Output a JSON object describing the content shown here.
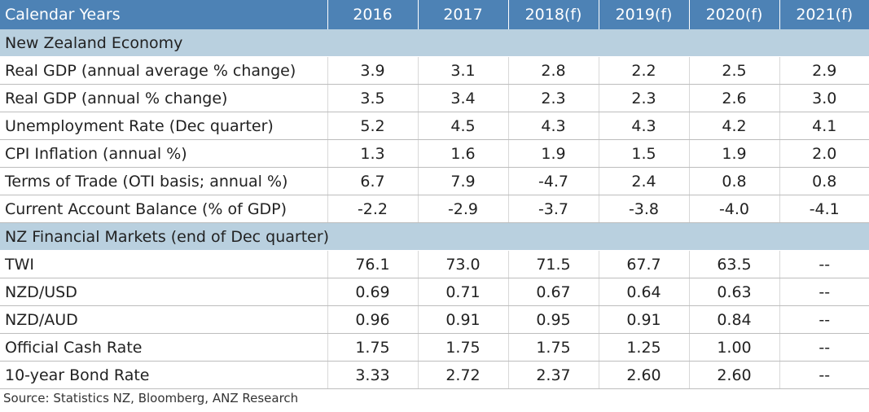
{
  "chart_data": {
    "type": "table",
    "columns": [
      "Calendar Years",
      "2016",
      "2017",
      "2018(f)",
      "2019(f)",
      "2020(f)",
      "2021(f)"
    ],
    "sections": [
      {
        "title": "New Zealand Economy",
        "rows": [
          {
            "label": "Real GDP (annual average % change)",
            "values": [
              "3.9",
              "3.1",
              "2.8",
              "2.2",
              "2.5",
              "2.9"
            ]
          },
          {
            "label": "Real GDP (annual % change)",
            "values": [
              "3.5",
              "3.4",
              "2.3",
              "2.3",
              "2.6",
              "3.0"
            ]
          },
          {
            "label": "Unemployment Rate (Dec quarter)",
            "values": [
              "5.2",
              "4.5",
              "4.3",
              "4.3",
              "4.2",
              "4.1"
            ]
          },
          {
            "label": "CPI Inflation (annual %)",
            "values": [
              "1.3",
              "1.6",
              "1.9",
              "1.5",
              "1.9",
              "2.0"
            ]
          },
          {
            "label": "Terms of Trade (OTI basis; annual %)",
            "values": [
              "6.7",
              "7.9",
              "-4.7",
              "2.4",
              "0.8",
              "0.8"
            ]
          },
          {
            "label": "Current Account Balance (% of GDP)",
            "values": [
              "-2.2",
              "-2.9",
              "-3.7",
              "-3.8",
              "-4.0",
              "-4.1"
            ]
          }
        ]
      },
      {
        "title": "NZ Financial Markets (end of Dec quarter)",
        "rows": [
          {
            "label": "TWI",
            "values": [
              "76.1",
              "73.0",
              "71.5",
              "67.7",
              "63.5",
              "--"
            ]
          },
          {
            "label": "NZD/USD",
            "values": [
              "0.69",
              "0.71",
              "0.67",
              "0.64",
              "0.63",
              "--"
            ]
          },
          {
            "label": "NZD/AUD",
            "values": [
              "0.96",
              "0.91",
              "0.95",
              "0.91",
              "0.84",
              "--"
            ]
          },
          {
            "label": "Official Cash Rate",
            "values": [
              "1.75",
              "1.75",
              "1.75",
              "1.25",
              "1.00",
              "--"
            ]
          },
          {
            "label": "10-year Bond Rate",
            "values": [
              "3.33",
              "2.72",
              "2.37",
              "2.60",
              "2.60",
              "--"
            ]
          }
        ]
      }
    ],
    "source": "Source: Statistics NZ, Bloomberg, ANZ Research",
    "colors": {
      "header": "#4d82b5",
      "section": "#b9d0df",
      "text": "#222222"
    }
  }
}
